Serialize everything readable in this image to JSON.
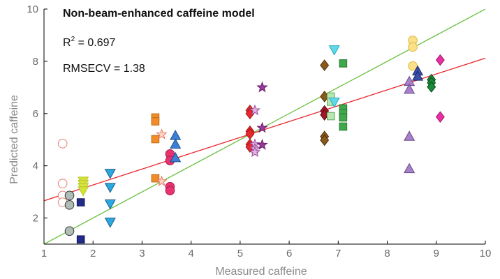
{
  "chart_data": {
    "type": "scatter",
    "title": "",
    "xlabel": "Measured caffeine",
    "ylabel": "Predicted caffeine",
    "xlim": [
      1,
      10
    ],
    "ylim": [
      1,
      10
    ],
    "xticks": [
      1,
      2,
      3,
      4,
      5,
      6,
      7,
      8,
      9,
      10
    ],
    "yticks": [
      2,
      4,
      6,
      8,
      10
    ],
    "grid": false,
    "annotations": {
      "model_title": "Non-beam-enhanced caffeine model",
      "r2_label": "R",
      "r2_sup": "2",
      "r2_value": " = 0.697",
      "rmsecv": "RMSECV = 1.38"
    },
    "lines": [
      {
        "role": "ideal",
        "color": "#6abf3f",
        "points": [
          [
            1,
            1
          ],
          [
            10,
            10
          ]
        ]
      },
      {
        "role": "fit",
        "color": "#e8282e",
        "points": [
          [
            1,
            2.66
          ],
          [
            10,
            8.12
          ]
        ]
      }
    ],
    "series": [
      {
        "marker": "circle-open",
        "fill": "#ffffff",
        "stroke": "#e87a72",
        "points": [
          [
            1.38,
            4.85
          ],
          [
            1.38,
            3.32
          ],
          [
            1.38,
            2.86
          ],
          [
            1.38,
            2.6
          ]
        ]
      },
      {
        "marker": "circle",
        "fill": "#b0bcb5",
        "stroke": "#2f3a33",
        "points": [
          [
            1.52,
            2.86
          ],
          [
            1.52,
            2.5
          ],
          [
            1.52,
            1.5
          ]
        ]
      },
      {
        "marker": "triangle-down",
        "fill": "#d4e23a",
        "stroke": "#b8c62a",
        "points": [
          [
            1.8,
            3.42
          ],
          [
            1.8,
            3.3
          ],
          [
            1.8,
            3.18
          ],
          [
            1.8,
            3.05
          ]
        ]
      },
      {
        "marker": "square",
        "fill": "#222a8a",
        "stroke": "#15185a",
        "points": [
          [
            1.75,
            2.6
          ],
          [
            1.75,
            1.18
          ]
        ]
      },
      {
        "marker": "triangle-down",
        "fill": "#2aa9e1",
        "stroke": "#1a5d8a",
        "points": [
          [
            2.35,
            3.72
          ],
          [
            2.35,
            3.18
          ],
          [
            2.35,
            2.55
          ],
          [
            2.35,
            1.85
          ]
        ]
      },
      {
        "marker": "square",
        "fill": "#f28c28",
        "stroke": "#c06a18",
        "points": [
          [
            3.27,
            5.85
          ],
          [
            3.27,
            5.7
          ],
          [
            3.27,
            5.02
          ],
          [
            3.27,
            3.52
          ]
        ]
      },
      {
        "marker": "star-open",
        "fill": "#fbd5c8",
        "stroke": "#e87a60",
        "points": [
          [
            3.4,
            5.2
          ],
          [
            3.4,
            3.4
          ]
        ]
      },
      {
        "marker": "circle",
        "fill": "#e8336f",
        "stroke": "#a82050",
        "points": [
          [
            3.57,
            4.45
          ],
          [
            3.57,
            4.2
          ],
          [
            3.57,
            3.2
          ],
          [
            3.57,
            3.05
          ]
        ]
      },
      {
        "marker": "triangle-up",
        "fill": "#3d7fd6",
        "stroke": "#1f4f8a",
        "points": [
          [
            3.68,
            5.15
          ],
          [
            3.68,
            4.82
          ],
          [
            3.68,
            4.3
          ]
        ]
      },
      {
        "marker": "diamond",
        "fill": "#e8282e",
        "stroke": "#a01818",
        "points": [
          [
            5.2,
            6.12
          ],
          [
            5.2,
            6.0
          ],
          [
            5.2,
            5.32
          ],
          [
            5.2,
            5.22
          ],
          [
            5.2,
            4.82
          ],
          [
            5.2,
            4.72
          ]
        ]
      },
      {
        "marker": "star",
        "fill": "#e4b4e4",
        "stroke": "#9a4a9a",
        "points": [
          [
            5.3,
            6.12
          ],
          [
            5.3,
            4.82
          ],
          [
            5.3,
            4.65
          ],
          [
            5.3,
            4.52
          ]
        ]
      },
      {
        "marker": "star",
        "fill": "#9a3a9a",
        "stroke": "#6a1a6a",
        "points": [
          [
            5.45,
            7.0
          ],
          [
            5.45,
            5.45
          ],
          [
            5.45,
            4.8
          ]
        ]
      },
      {
        "marker": "diamond",
        "fill": "#8a5a1a",
        "stroke": "#4a2a08",
        "points": [
          [
            6.72,
            7.85
          ],
          [
            6.72,
            6.65
          ],
          [
            6.72,
            5.12
          ],
          [
            6.72,
            4.98
          ]
        ]
      },
      {
        "marker": "diamond",
        "fill": "#a01828",
        "stroke": "#600810",
        "points": [
          [
            6.72,
            6.1
          ],
          [
            6.72,
            5.95
          ]
        ]
      },
      {
        "marker": "square",
        "fill": "#b8e8b0",
        "stroke": "#5aa85a",
        "points": [
          [
            6.85,
            6.65
          ],
          [
            6.85,
            6.45
          ],
          [
            6.85,
            5.9
          ]
        ]
      },
      {
        "marker": "triangle-down",
        "fill": "#5fd8e8",
        "stroke": "#2aa9c1",
        "points": [
          [
            6.92,
            8.45
          ],
          [
            6.92,
            6.45
          ]
        ]
      },
      {
        "marker": "square",
        "fill": "#3fa84a",
        "stroke": "#2a7a30",
        "points": [
          [
            7.1,
            7.92
          ],
          [
            7.1,
            6.2
          ],
          [
            7.1,
            6.02
          ],
          [
            7.1,
            5.85
          ],
          [
            7.1,
            5.5
          ]
        ]
      },
      {
        "marker": "triangle-up",
        "fill": "#a880c8",
        "stroke": "#6a4a8a",
        "points": [
          [
            8.45,
            7.22
          ],
          [
            8.45,
            6.92
          ],
          [
            8.45,
            5.12
          ],
          [
            8.45,
            3.88
          ]
        ]
      },
      {
        "marker": "circle",
        "fill": "#fbe08a",
        "stroke": "#e0b840",
        "points": [
          [
            8.52,
            8.8
          ],
          [
            8.52,
            8.55
          ],
          [
            8.52,
            7.82
          ]
        ]
      },
      {
        "marker": "triangle-up",
        "fill": "#3a50a8",
        "stroke": "#1a2a6a",
        "points": [
          [
            8.62,
            7.62
          ],
          [
            8.62,
            7.42
          ]
        ]
      },
      {
        "marker": "diamond",
        "fill": "#1a8a3a",
        "stroke": "#0a4a1a",
        "points": [
          [
            8.9,
            7.3
          ],
          [
            8.9,
            7.18
          ],
          [
            8.9,
            7.02
          ]
        ]
      },
      {
        "marker": "diamond",
        "fill": "#e830a0",
        "stroke": "#a01870",
        "points": [
          [
            9.08,
            8.05
          ],
          [
            9.08,
            5.87
          ]
        ]
      }
    ]
  }
}
